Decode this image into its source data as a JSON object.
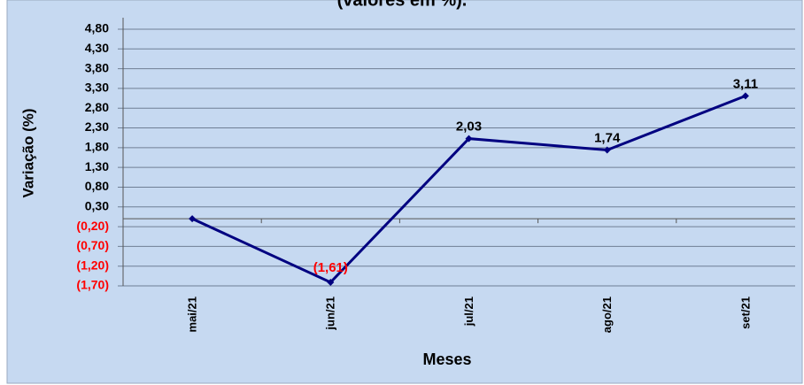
{
  "chart_data": {
    "type": "line",
    "title": "(valores em %).",
    "x_label": "Meses",
    "y_label": "Variação (%)",
    "categories": [
      "mai/21",
      "jun/21",
      "jul/21",
      "ago/21",
      "set/21"
    ],
    "series": [
      {
        "name": "Variação",
        "color": "#000080",
        "values": [
          0.0,
          -1.61,
          2.03,
          1.74,
          3.11
        ],
        "value_labels": [
          null,
          "(1,61)",
          "2,03",
          "1,74",
          "3,11"
        ]
      }
    ],
    "ylim": [
      -1.7,
      4.8
    ],
    "yticks": [
      {
        "value": 4.8,
        "label": "4,80"
      },
      {
        "value": 4.3,
        "label": "4,30"
      },
      {
        "value": 3.8,
        "label": "3,80"
      },
      {
        "value": 3.3,
        "label": "3,30"
      },
      {
        "value": 2.8,
        "label": "2,80"
      },
      {
        "value": 2.3,
        "label": "2,30"
      },
      {
        "value": 1.8,
        "label": "1,80"
      },
      {
        "value": 1.3,
        "label": "1,30"
      },
      {
        "value": 0.8,
        "label": "0,80"
      },
      {
        "value": 0.3,
        "label": "0,30"
      },
      {
        "value": -0.2,
        "label": "(0,20)"
      },
      {
        "value": -0.7,
        "label": "(0,70)"
      },
      {
        "value": -1.2,
        "label": "(1,20)"
      },
      {
        "value": -1.7,
        "label": "(1,70)"
      }
    ],
    "grid": true
  }
}
